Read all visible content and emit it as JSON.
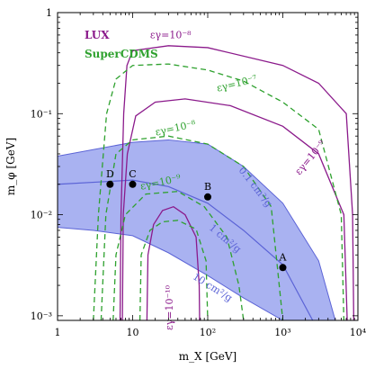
{
  "chart_data": {
    "type": "line",
    "xlabel": "m_X [GeV]",
    "ylabel": "m_φ [GeV]",
    "xscale": "log",
    "yscale": "log",
    "xlim": [
      1,
      10000
    ],
    "ylim": [
      0.0009,
      1
    ],
    "x_ticks": [
      {
        "value": 1,
        "label": "1"
      },
      {
        "value": 10,
        "label": "10"
      },
      {
        "value": 100,
        "label": "10²"
      },
      {
        "value": 1000,
        "label": "10³"
      },
      {
        "value": 10000,
        "label": "10⁴"
      }
    ],
    "y_ticks": [
      {
        "value": 0.001,
        "label": "10⁻³"
      },
      {
        "value": 0.01,
        "label": "10⁻²"
      },
      {
        "value": 0.1,
        "label": "10⁻¹"
      },
      {
        "value": 1,
        "label": "1"
      }
    ],
    "colors": {
      "lux": "#8b1a8b",
      "supercdms": "#2ea12e",
      "band_fill": "#9aa4ee",
      "band_line": "#5b63d6",
      "band_label": "#5b63d6"
    },
    "legend": [
      {
        "name": "LUX",
        "color": "#8b1a8b"
      },
      {
        "name": "SuperCDMS",
        "color": "#2ea12e"
      }
    ],
    "band": {
      "lower": [
        [
          1,
          0.0075
        ],
        [
          3,
          0.007
        ],
        [
          10,
          0.0062
        ],
        [
          30,
          0.0042
        ],
        [
          100,
          0.0025
        ],
        [
          300,
          0.0015
        ],
        [
          1000,
          0.0009
        ]
      ],
      "upper": [
        [
          1,
          0.038
        ],
        [
          10,
          0.052
        ],
        [
          30,
          0.055
        ],
        [
          100,
          0.05
        ],
        [
          300,
          0.03
        ],
        [
          1000,
          0.013
        ],
        [
          3000,
          0.0035
        ],
        [
          5000,
          0.0009
        ]
      ],
      "center": [
        [
          1,
          0.02
        ],
        [
          10,
          0.022
        ],
        [
          30,
          0.019
        ],
        [
          100,
          0.013
        ],
        [
          300,
          0.007
        ],
        [
          1000,
          0.0032
        ],
        [
          2500,
          0.0009
        ]
      ],
      "labels": [
        {
          "text": "0.1 cm²/g",
          "x": 400,
          "y": 0.018,
          "angle": 52
        },
        {
          "text": "1 cm²/g",
          "x": 160,
          "y": 0.0055,
          "angle": 40
        },
        {
          "text": "10 cm²/g",
          "x": 110,
          "y": 0.0018,
          "angle": 32
        }
      ]
    },
    "series": [
      {
        "detector": "LUX",
        "label": "εγ=10⁻⁸",
        "label_pos": [
          32,
          0.56
        ],
        "points": [
          [
            6.8,
            0.0009
          ],
          [
            7.0,
            0.01
          ],
          [
            7.6,
            0.1
          ],
          [
            8.4,
            0.3
          ],
          [
            10,
            0.42
          ],
          [
            30,
            0.47
          ],
          [
            100,
            0.45
          ],
          [
            1000,
            0.3
          ],
          [
            3000,
            0.2
          ],
          [
            7000,
            0.1
          ],
          [
            8500,
            0.01
          ],
          [
            8800,
            0.0009
          ]
        ]
      },
      {
        "detector": "LUX",
        "label": "εγ=10⁻⁹",
        "label_pos": [
          2500,
          0.035
        ],
        "angle": -50,
        "points": [
          [
            7.3,
            0.0009
          ],
          [
            7.5,
            0.01
          ],
          [
            8.5,
            0.04
          ],
          [
            11,
            0.095
          ],
          [
            20,
            0.13
          ],
          [
            50,
            0.14
          ],
          [
            200,
            0.12
          ],
          [
            1000,
            0.075
          ],
          [
            3000,
            0.04
          ],
          [
            6500,
            0.01
          ],
          [
            7200,
            0.0009
          ]
        ]
      },
      {
        "detector": "LUX",
        "label": "εγ=10⁻¹⁰",
        "label_pos": [
          34,
          0.0012
        ],
        "angle": -90,
        "points": [
          [
            15.5,
            0.0009
          ],
          [
            16,
            0.004
          ],
          [
            19,
            0.008
          ],
          [
            25,
            0.011
          ],
          [
            35,
            0.012
          ],
          [
            50,
            0.01
          ],
          [
            70,
            0.006
          ],
          [
            77,
            0.002
          ],
          [
            78,
            0.0009
          ]
        ]
      },
      {
        "detector": "SuperCDMS",
        "label": "εγ=10⁻⁷",
        "label_pos": [
          250,
          0.185
        ],
        "angle": -14,
        "points": [
          [
            3.0,
            0.0009
          ],
          [
            3.5,
            0.01
          ],
          [
            4.5,
            0.1
          ],
          [
            6,
            0.22
          ],
          [
            10,
            0.3
          ],
          [
            30,
            0.31
          ],
          [
            100,
            0.27
          ],
          [
            300,
            0.21
          ],
          [
            1000,
            0.13
          ],
          [
            3000,
            0.07
          ],
          [
            6000,
            0.01
          ],
          [
            6500,
            0.0009
          ]
        ]
      },
      {
        "detector": "SuperCDMS",
        "label": "εγ=10⁻⁸",
        "label_pos": [
          38,
          0.067
        ],
        "angle": -12,
        "points": [
          [
            3.8,
            0.0009
          ],
          [
            4.4,
            0.01
          ],
          [
            6,
            0.04
          ],
          [
            10,
            0.055
          ],
          [
            30,
            0.06
          ],
          [
            100,
            0.05
          ],
          [
            300,
            0.03
          ],
          [
            700,
            0.012
          ],
          [
            1000,
            0.0009
          ]
        ]
      },
      {
        "detector": "SuperCDMS",
        "label": "εγ=10⁻⁹",
        "label_pos": [
          24,
          0.0195
        ],
        "angle": -12,
        "points": [
          [
            5.5,
            0.0009
          ],
          [
            6,
            0.004
          ],
          [
            8,
            0.01
          ],
          [
            15,
            0.016
          ],
          [
            40,
            0.017
          ],
          [
            90,
            0.012
          ],
          [
            180,
            0.006
          ],
          [
            260,
            0.002
          ],
          [
            300,
            0.0009
          ]
        ]
      },
      {
        "detector": "SuperCDMS",
        "label": "",
        "points": [
          [
            12.5,
            0.0009
          ],
          [
            13,
            0.004
          ],
          [
            17,
            0.007
          ],
          [
            25,
            0.0085
          ],
          [
            40,
            0.0088
          ],
          [
            70,
            0.0072
          ],
          [
            95,
            0.0035
          ],
          [
            100,
            0.0009
          ]
        ]
      }
    ],
    "points": [
      {
        "label": "A",
        "x": 1000,
        "y": 0.003
      },
      {
        "label": "B",
        "x": 100,
        "y": 0.015
      },
      {
        "label": "C",
        "x": 10,
        "y": 0.02
      },
      {
        "label": "D",
        "x": 5,
        "y": 0.02
      }
    ]
  }
}
